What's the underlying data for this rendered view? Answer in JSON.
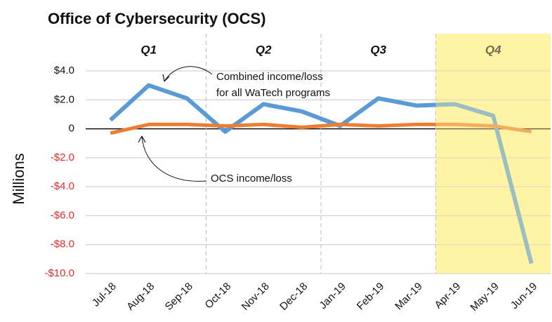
{
  "chart_data": {
    "type": "line",
    "title": "Office of Cybersecurity (OCS)",
    "y_label": "Millions",
    "categories": [
      "Jul-18",
      "Aug-18",
      "Sep-18",
      "Oct-18",
      "Nov-18",
      "Dec-18",
      "Jan-19",
      "Feb-19",
      "Mar-19",
      "Apr-19",
      "May-19",
      "Jun-19"
    ],
    "series": [
      {
        "color": "#5b9bd5",
        "values": [
          0.6,
          3.0,
          2.1,
          -0.2,
          1.7,
          1.2,
          0.2,
          2.1,
          1.6,
          1.7,
          0.9,
          -9.3
        ]
      },
      {
        "color": "#ed7d31",
        "values": [
          -0.3,
          0.3,
          0.3,
          0.2,
          0.3,
          0.1,
          0.3,
          0.2,
          0.3,
          0.3,
          0.2,
          -0.2
        ]
      }
    ],
    "quarters": [
      {
        "label": "Q1"
      },
      {
        "label": "Q2"
      },
      {
        "label": "Q3"
      },
      {
        "label": "Q4",
        "shaded": true
      }
    ],
    "shade_color": "#fff3a6",
    "annotations": [
      {
        "lines": [
          "Combined income/loss",
          "for all WaTech programs"
        ]
      },
      {
        "lines": [
          "OCS income/loss"
        ]
      }
    ],
    "ylim": [
      -10,
      4
    ],
    "yticks": [
      {
        "value": 4,
        "label": "$4.0"
      },
      {
        "value": 2,
        "label": "$2.0"
      },
      0,
      {
        "value": -2,
        "label": "-$2.0"
      },
      {
        "value": -4,
        "label": "-$4.0"
      },
      {
        "value": -6,
        "label": "-$6.0"
      },
      {
        "value": -8,
        "label": "-$8.0"
      },
      {
        "value": -10,
        "label": "-$10.0"
      }
    ],
    "negative_tick_color": "#e02b2b",
    "grid": true
  }
}
